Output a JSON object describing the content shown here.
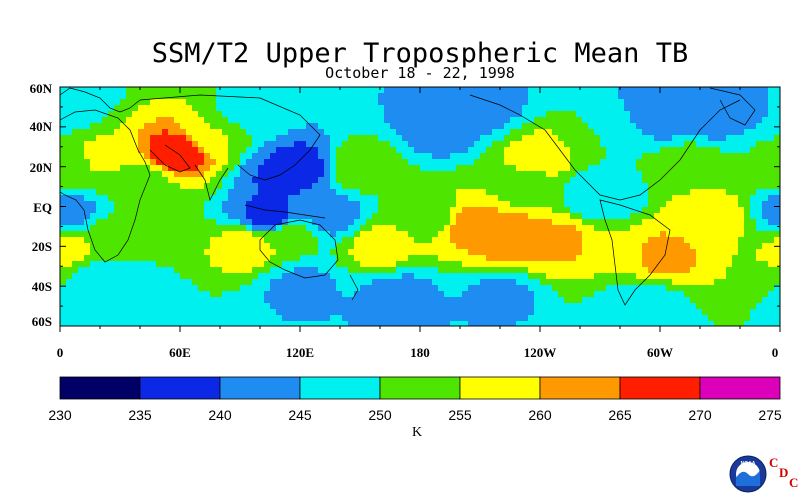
{
  "chart_data": {
    "type": "heatmap",
    "title": "SSM/T2 Upper Tropospheric Mean TB",
    "subtitle": "October 18 - 22, 1998",
    "y_ticks": [
      "60N",
      "40N",
      "20N",
      "EQ",
      "20S",
      "40S",
      "60S"
    ],
    "x_ticks": [
      "0",
      "60E",
      "120E",
      "180",
      "120W",
      "60W",
      "0"
    ],
    "colorbar": {
      "levels": [
        230,
        235,
        240,
        245,
        250,
        255,
        260,
        265,
        270,
        275
      ],
      "labels": [
        "230",
        "235",
        "240",
        "245",
        "250",
        "255",
        "260",
        "265",
        "270",
        "275"
      ],
      "colors": [
        "#000066",
        "#0a28e6",
        "#1e8cf0",
        "#00f0f0",
        "#4ee600",
        "#ffff00",
        "#ff9900",
        "#ff1e00",
        "#dd00bb"
      ],
      "unit": "K"
    },
    "lon_range": [
      0,
      360
    ],
    "lat_range": [
      -60,
      60
    ],
    "features": [
      {
        "lon": 60,
        "lat": 28,
        "value": 269
      },
      {
        "lon": 75,
        "lat": 35,
        "value": 255
      },
      {
        "lon": 20,
        "lat": 25,
        "value": 256
      },
      {
        "lon": 5,
        "lat": 22,
        "value": 253
      },
      {
        "lon": 40,
        "lat": 10,
        "value": 252
      },
      {
        "lon": 5,
        "lat": -3,
        "value": 243
      },
      {
        "lon": 25,
        "lat": -15,
        "value": 253
      },
      {
        "lon": 5,
        "lat": -22,
        "value": 256
      },
      {
        "lon": 95,
        "lat": -20,
        "value": 258
      },
      {
        "lon": 115,
        "lat": -15,
        "value": 252
      },
      {
        "lon": 135,
        "lat": -5,
        "value": 243
      },
      {
        "lon": 112,
        "lat": 15,
        "value": 239
      },
      {
        "lon": 120,
        "lat": 20,
        "value": 238
      },
      {
        "lon": 105,
        "lat": -5,
        "value": 238
      },
      {
        "lon": 150,
        "lat": 20,
        "value": 254
      },
      {
        "lon": 160,
        "lat": -20,
        "value": 257
      },
      {
        "lon": 185,
        "lat": -5,
        "value": 252
      },
      {
        "lon": 225,
        "lat": -15,
        "value": 264
      },
      {
        "lon": 205,
        "lat": -10,
        "value": 262
      },
      {
        "lon": 250,
        "lat": -18,
        "value": 261
      },
      {
        "lon": 280,
        "lat": -25,
        "value": 255
      },
      {
        "lon": 300,
        "lat": -25,
        "value": 262
      },
      {
        "lon": 325,
        "lat": -5,
        "value": 258
      },
      {
        "lon": 315,
        "lat": 20,
        "value": 254
      },
      {
        "lon": 240,
        "lat": 25,
        "value": 257
      },
      {
        "lon": 232,
        "lat": 10,
        "value": 253
      },
      {
        "lon": 190,
        "lat": 40,
        "value": 242
      },
      {
        "lon": 210,
        "lat": 50,
        "value": 243
      },
      {
        "lon": 300,
        "lat": 45,
        "value": 242
      },
      {
        "lon": 330,
        "lat": 45,
        "value": 241
      },
      {
        "lon": 220,
        "lat": -45,
        "value": 244
      },
      {
        "lon": 290,
        "lat": -48,
        "value": 246
      },
      {
        "lon": 30,
        "lat": -50,
        "value": 245
      },
      {
        "lon": 20,
        "lat": -35,
        "value": 248
      },
      {
        "lon": 170,
        "lat": -45,
        "value": 243
      },
      {
        "lon": 120,
        "lat": -40,
        "value": 244
      },
      {
        "lon": 270,
        "lat": 5,
        "value": 245
      },
      {
        "lon": 275,
        "lat": 35,
        "value": 250
      },
      {
        "lon": 0,
        "lat": 50,
        "value": 245
      },
      {
        "lon": 95,
        "lat": 48,
        "value": 248
      },
      {
        "lon": 345,
        "lat": 25,
        "value": 250
      }
    ]
  },
  "logo": {
    "text": "NOAA",
    "cdc_letters": [
      "C",
      "D",
      "C"
    ]
  }
}
